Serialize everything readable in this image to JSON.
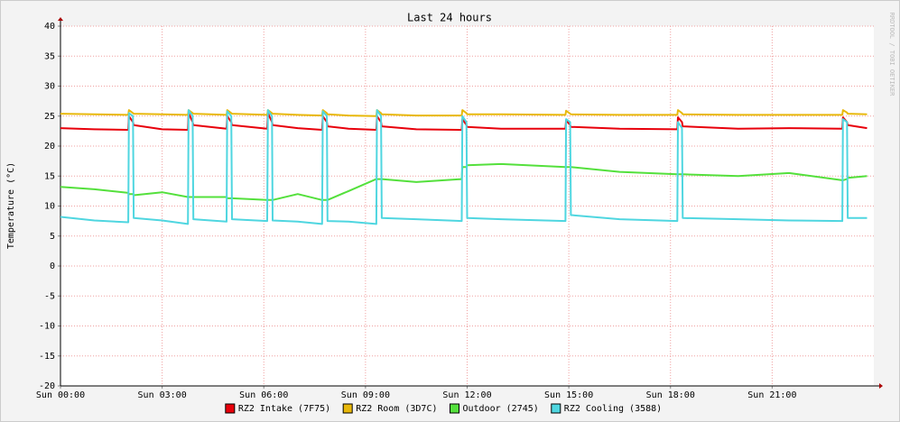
{
  "chart_data": {
    "type": "line",
    "title": "Last 24 hours",
    "y_label": "Temperature (°C)",
    "watermark": "RRDTOOL / TOBI OETIKER",
    "x": [
      0,
      1,
      2.0,
      2.02,
      2.14,
      2.16,
      3,
      3.76,
      3.78,
      3.9,
      3.92,
      4.9,
      4.92,
      5.04,
      5.06,
      6.1,
      6.12,
      6.24,
      6.26,
      7,
      7.72,
      7.74,
      7.86,
      7.88,
      8.5,
      9.32,
      9.34,
      9.46,
      9.48,
      10.5,
      11.84,
      11.86,
      11.98,
      12.0,
      13,
      14.9,
      14.92,
      15.04,
      15.06,
      16.5,
      18.2,
      18.22,
      18.34,
      18.36,
      20,
      21.5,
      23.07,
      23.09,
      23.21,
      23.23,
      23.8
    ],
    "series": [
      {
        "name": "RZ2 Intake (7F75)",
        "color": "#e8000b",
        "values": [
          23,
          22.8,
          22.7,
          25,
          24,
          23.5,
          22.8,
          22.7,
          25.5,
          24,
          23.5,
          22.9,
          25,
          24,
          23.5,
          22.9,
          25.5,
          24,
          23.5,
          23,
          22.7,
          25,
          24,
          23.3,
          22.9,
          22.7,
          25,
          24,
          23.3,
          22.8,
          22.7,
          24.5,
          23.5,
          23.2,
          22.9,
          22.9,
          24.3,
          23.5,
          23.2,
          22.9,
          22.8,
          24.8,
          24,
          23.3,
          22.9,
          23,
          22.9,
          24.8,
          24,
          23.5,
          23
        ]
      },
      {
        "name": "RZ2 Room (3D7C)",
        "color": "#e8b80b",
        "values": [
          25.4,
          25.3,
          25.2,
          26,
          25.5,
          25.4,
          25.3,
          25.2,
          26,
          25.5,
          25.4,
          25.2,
          26,
          25.5,
          25.4,
          25.2,
          26,
          25.5,
          25.4,
          25.2,
          25.1,
          26,
          25.5,
          25.3,
          25.1,
          25,
          26,
          25.5,
          25.3,
          25.1,
          25.1,
          26,
          25.5,
          25.3,
          25.3,
          25.2,
          25.9,
          25.4,
          25.3,
          25.2,
          25.2,
          26,
          25.5,
          25.3,
          25.2,
          25.2,
          25.2,
          26,
          25.6,
          25.4,
          25.3
        ]
      },
      {
        "name": "Outdoor (2745)",
        "color": "#54e03c",
        "values": [
          13.2,
          12.8,
          12.2,
          12,
          12,
          11.8,
          12.3,
          11.5,
          11.5,
          11.5,
          11.5,
          11.5,
          11.3,
          11.3,
          11.3,
          11,
          11,
          11,
          11,
          12,
          11,
          11,
          11,
          11,
          12.5,
          14.5,
          14.5,
          14.5,
          14.5,
          14,
          14.5,
          16.5,
          16.5,
          16.8,
          17,
          16.5,
          16.5,
          16.5,
          16.5,
          15.7,
          15.3,
          15.3,
          15.3,
          15.3,
          15,
          15.5,
          14.3,
          14.3,
          14.5,
          14.7,
          15
        ]
      },
      {
        "name": "RZ2 Cooling (3588)",
        "color": "#4fd6e0",
        "values": [
          8.2,
          7.6,
          7.3,
          25.5,
          25,
          8,
          7.6,
          7,
          26,
          25,
          7.8,
          7.4,
          25.8,
          25,
          7.8,
          7.5,
          26,
          25,
          7.6,
          7.4,
          7,
          25.8,
          25,
          7.5,
          7.4,
          7,
          26,
          25,
          8,
          7.8,
          7.5,
          25,
          24,
          8,
          7.8,
          7.5,
          24.5,
          24,
          8.5,
          7.8,
          7.5,
          24,
          23,
          8,
          7.8,
          7.6,
          7.5,
          24.5,
          24,
          8,
          8
        ]
      }
    ],
    "xlim": [
      0,
      24
    ],
    "xticks": [
      {
        "value": 0,
        "label": "Sun 00:00"
      },
      {
        "value": 3,
        "label": "Sun 03:00"
      },
      {
        "value": 6,
        "label": "Sun 06:00"
      },
      {
        "value": 9,
        "label": "Sun 09:00"
      },
      {
        "value": 12,
        "label": "Sun 12:00"
      },
      {
        "value": 15,
        "label": "Sun 15:00"
      },
      {
        "value": 18,
        "label": "Sun 18:00"
      },
      {
        "value": 21,
        "label": "Sun 21:00"
      }
    ],
    "ylim": [
      -20,
      40
    ],
    "yticks": [
      -20,
      -15,
      -10,
      -5,
      0,
      5,
      10,
      15,
      20,
      25,
      30,
      35,
      40
    ],
    "grid": true
  }
}
